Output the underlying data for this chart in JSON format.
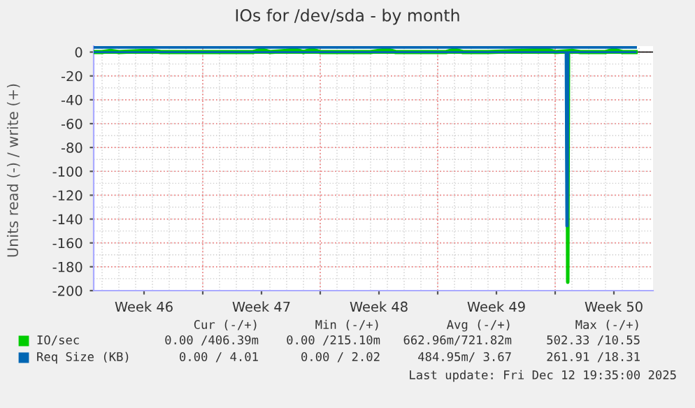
{
  "chart_data": {
    "type": "line",
    "title": "IOs for /dev/sda - by month",
    "ylabel": "Units read (-) / write (+)",
    "xlim": [
      "2025-11-10T12:00",
      "2025-12-13T20:00"
    ],
    "xticks": [
      {
        "value": "2025-11-13T12:00",
        "label": "Week 46"
      },
      {
        "value": "2025-11-17T00:00",
        "label": null
      },
      {
        "value": "2025-11-20T12:00",
        "label": "Week 47"
      },
      {
        "value": "2025-11-24T00:00",
        "label": null
      },
      {
        "value": "2025-11-27T12:00",
        "label": "Week 48"
      },
      {
        "value": "2025-12-01T00:00",
        "label": null
      },
      {
        "value": "2025-12-04T12:00",
        "label": "Week 49"
      },
      {
        "value": "2025-12-08T00:00",
        "label": null
      },
      {
        "value": "2025-12-11T12:00",
        "label": "Week 50"
      }
    ],
    "ylim": [
      -200,
      5
    ],
    "yticks": [
      -200,
      -180,
      -160,
      -140,
      -120,
      -100,
      -80,
      -60,
      -40,
      -20,
      0
    ],
    "grid": true,
    "legend": "bottom",
    "series": [
      {
        "name": "IO/sec",
        "color": "#00cc00",
        "x": [
          "2025-11-10T12:00",
          "2025-11-11T00:00",
          "2025-11-11T12:00",
          "2025-11-12T00:00",
          "2025-11-13T12:00",
          "2025-11-14T00:00",
          "2025-11-14T12:00",
          "2025-11-19T00:00",
          "2025-11-20T00:00",
          "2025-11-20T12:00",
          "2025-11-21T00:00",
          "2025-11-22T00:00",
          "2025-11-22T12:00",
          "2025-11-23T00:00",
          "2025-11-23T12:00",
          "2025-11-24T00:00",
          "2025-11-27T00:00",
          "2025-11-28T00:00",
          "2025-11-28T12:00",
          "2025-11-29T00:00",
          "2025-12-01T12:00",
          "2025-12-02T00:00",
          "2025-12-02T12:00",
          "2025-12-04T00:00",
          "2025-12-06T00:00",
          "2025-12-07T12:00",
          "2025-12-08T00:00",
          "2025-12-09T00:00",
          "2025-12-09T12:00",
          "2025-12-11T00:00",
          "2025-12-11T12:00",
          "2025-12-12T00:00",
          "2025-12-12T19:00"
        ],
        "values": [
          0,
          0,
          1,
          0,
          1,
          1,
          0,
          0,
          0,
          2,
          0,
          1,
          2,
          0,
          2,
          0,
          0,
          2,
          0,
          0,
          0,
          2,
          0,
          0,
          1,
          2,
          0,
          1,
          0,
          0,
          2,
          0,
          0
        ]
      },
      {
        "color": "#00cc00",
        "x": [
          "2025-11-10T12:00",
          "2025-12-08T17:00",
          "2025-12-08T18:00",
          "2025-12-08T19:00",
          "2025-12-12T19:00"
        ],
        "values": [
          0,
          0,
          -193,
          0,
          0
        ]
      },
      {
        "name": "Req Size (KB)",
        "color": "#0066b3",
        "x": [
          "2025-11-10T12:00",
          "2025-12-12T19:00"
        ],
        "values": [
          4,
          4
        ]
      },
      {
        "color": "#0066b3",
        "x": [
          "2025-11-10T12:00",
          "2025-12-08T15:00",
          "2025-12-08T16:00",
          "2025-12-08T17:00",
          "2025-12-08T18:00",
          "2025-12-08T19:00",
          "2025-12-12T19:00"
        ],
        "values": [
          0,
          0,
          -146,
          0,
          -146,
          0,
          0
        ]
      }
    ],
    "annotations": [
      "Cur (-/+)",
      "Min (-/+)",
      "Avg (-/+)",
      "Max (-/+)",
      "0.00 /406.39m",
      "0.00 /215.10m",
      "662.96m/721.82m",
      "502.33 /10.55",
      "0.00 / 4.01",
      "0.00 / 2.02",
      "484.95m/ 3.67",
      "261.91 /18.31",
      "Last update: Fri Dec 12 19:35:00 2025"
    ]
  }
}
